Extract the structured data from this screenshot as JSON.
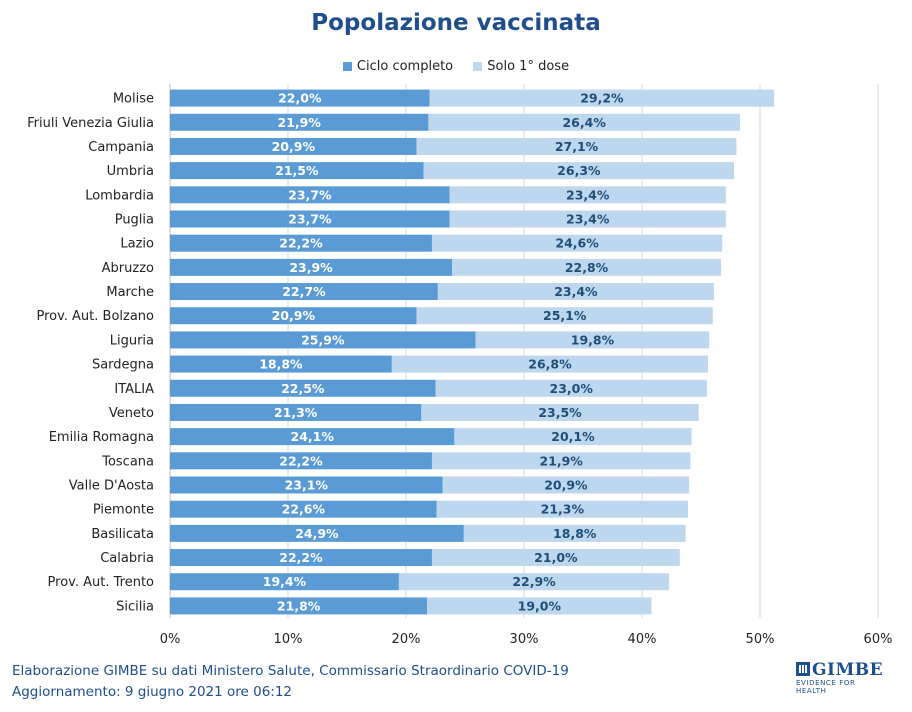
{
  "title": "Popolazione vaccinata",
  "legend": {
    "series1": "Ciclo completo",
    "series2": "Solo 1° dose"
  },
  "colors": {
    "series1": "#5b9bd5",
    "series2": "#bdd7ee",
    "label1": "#ffffff",
    "label2": "#1f4e79",
    "title": "#1f4e8c"
  },
  "chart_data": {
    "type": "bar",
    "orientation": "horizontal",
    "stacked": true,
    "xlim": [
      0,
      60
    ],
    "xticks": [
      "0%",
      "10%",
      "20%",
      "30%",
      "40%",
      "50%",
      "60%"
    ],
    "grid": "vertical",
    "legend_position": "top",
    "categories": [
      "Molise",
      "Friuli Venezia Giulia",
      "Campania",
      "Umbria",
      "Lombardia",
      "Puglia",
      "Lazio",
      "Abruzzo",
      "Marche",
      "Prov. Aut. Bolzano",
      "Liguria",
      "Sardegna",
      "ITALIA",
      "Veneto",
      "Emilia Romagna",
      "Toscana",
      "Valle D'Aosta",
      "Piemonte",
      "Basilicata",
      "Calabria",
      "Prov. Aut. Trento",
      "Sicilia"
    ],
    "series": [
      {
        "name": "Ciclo completo",
        "values": [
          22.0,
          21.9,
          20.9,
          21.5,
          23.7,
          23.7,
          22.2,
          23.9,
          22.7,
          20.9,
          25.9,
          18.8,
          22.5,
          21.3,
          24.1,
          22.2,
          23.1,
          22.6,
          24.9,
          22.2,
          19.4,
          21.8
        ],
        "labels": [
          "22,0%",
          "21,9%",
          "20,9%",
          "21,5%",
          "23,7%",
          "23,7%",
          "22,2%",
          "23,9%",
          "22,7%",
          "20,9%",
          "25,9%",
          "18,8%",
          "22,5%",
          "21,3%",
          "24,1%",
          "22,2%",
          "23,1%",
          "22,6%",
          "24,9%",
          "22,2%",
          "19,4%",
          "21,8%"
        ]
      },
      {
        "name": "Solo 1° dose",
        "values": [
          29.2,
          26.4,
          27.1,
          26.3,
          23.4,
          23.4,
          24.6,
          22.8,
          23.4,
          25.1,
          19.8,
          26.8,
          23.0,
          23.5,
          20.1,
          21.9,
          20.9,
          21.3,
          18.8,
          21.0,
          22.9,
          19.0
        ],
        "labels": [
          "29,2%",
          "26,4%",
          "27,1%",
          "26,3%",
          "23,4%",
          "23,4%",
          "24,6%",
          "22,8%",
          "23,4%",
          "25,1%",
          "19,8%",
          "26,8%",
          "23,0%",
          "23,5%",
          "20,1%",
          "21,9%",
          "20,9%",
          "21,3%",
          "18,8%",
          "21,0%",
          "22,9%",
          "19,0%"
        ]
      }
    ]
  },
  "footer": {
    "line1": "Elaborazione GIMBE su dati Ministero Salute, Commissario Straordinario COVID-19",
    "line2": "Aggiornamento: 9 giugno 2021 ore 06:12"
  },
  "logo": {
    "name": "GIMBE",
    "tagline": "EVIDENCE FOR HEALTH"
  }
}
